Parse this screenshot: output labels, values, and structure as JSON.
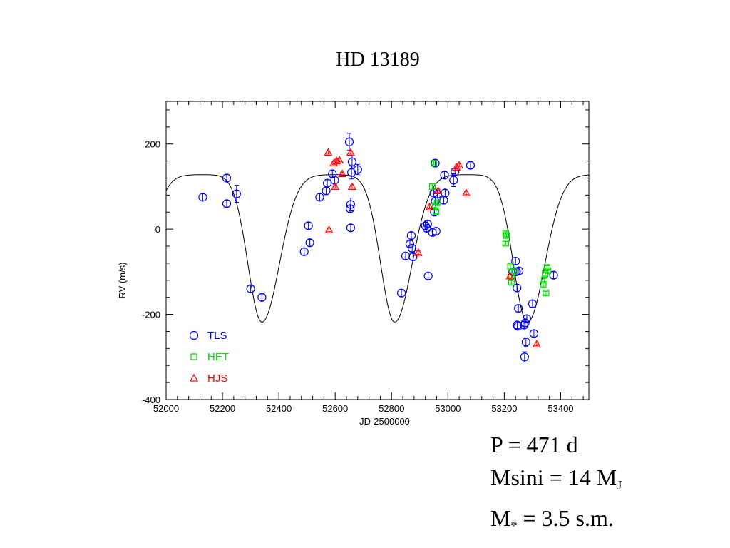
{
  "title": "HD 13189",
  "params": {
    "period_prefix": "P = 471 d",
    "msini_prefix": "Msini = 14 M",
    "msini_sub": "J",
    "mstar_prefix": "M",
    "mstar_sub": "*",
    "mstar_suffix": " = 3.5 s.m."
  },
  "chart_data": {
    "type": "scatter",
    "xlabel": "JD-2500000",
    "ylabel": "RV (m/s)",
    "xlim": [
      52000,
      53500
    ],
    "ylim": [
      -400,
      300
    ],
    "xticks": [
      52000,
      52200,
      52400,
      52600,
      52800,
      53000,
      53200,
      53400
    ],
    "yticks": [
      -400,
      -200,
      0,
      200
    ],
    "xtick_labels": [
      "52000",
      "52200",
      "52400",
      "52600",
      "52800",
      "53000",
      "53200",
      "53400"
    ],
    "ytick_labels": [
      "-400",
      "-200",
      "0",
      "200"
    ],
    "legend_position": "bottom-left",
    "model_curve": {
      "period": 471,
      "type": "keplerian-orbit-fit",
      "max": 128,
      "min": -218,
      "minima": [
        52340,
        52811,
        53282
      ]
    },
    "series": [
      {
        "name": "TLS",
        "marker": "circle",
        "color": "#0000ff",
        "points": [
          {
            "x": 52130,
            "y": 75,
            "err": 8
          },
          {
            "x": 52215,
            "y": 120,
            "err": 8
          },
          {
            "x": 52215,
            "y": 60,
            "err": 8
          },
          {
            "x": 52250,
            "y": 83,
            "err": 20
          },
          {
            "x": 52300,
            "y": -140,
            "err": 8
          },
          {
            "x": 52340,
            "y": -160,
            "err": 8
          },
          {
            "x": 52490,
            "y": -53,
            "err": 8
          },
          {
            "x": 52505,
            "y": 8,
            "err": 8
          },
          {
            "x": 52510,
            "y": -32,
            "err": 8
          },
          {
            "x": 52545,
            "y": 75,
            "err": 8
          },
          {
            "x": 52568,
            "y": 90,
            "err": 8
          },
          {
            "x": 52572,
            "y": 108,
            "err": 8
          },
          {
            "x": 52590,
            "y": 130,
            "err": 8
          },
          {
            "x": 52598,
            "y": 115,
            "err": 8
          },
          {
            "x": 52650,
            "y": 205,
            "err": 20
          },
          {
            "x": 52653,
            "y": 48,
            "err": 8
          },
          {
            "x": 52655,
            "y": 58,
            "err": 15
          },
          {
            "x": 52655,
            "y": 3,
            "err": 8
          },
          {
            "x": 52658,
            "y": 133,
            "err": 15
          },
          {
            "x": 52660,
            "y": 158,
            "err": 15
          },
          {
            "x": 52680,
            "y": 140,
            "err": 12
          },
          {
            "x": 52835,
            "y": -150,
            "err": 8
          },
          {
            "x": 52850,
            "y": -63,
            "err": 8
          },
          {
            "x": 52865,
            "y": -35,
            "err": 8
          },
          {
            "x": 52870,
            "y": -15,
            "err": 8
          },
          {
            "x": 52873,
            "y": -45,
            "err": 8
          },
          {
            "x": 52876,
            "y": -65,
            "err": 8
          },
          {
            "x": 52920,
            "y": 8,
            "err": 8
          },
          {
            "x": 52925,
            "y": 2,
            "err": 8
          },
          {
            "x": 52928,
            "y": 12,
            "err": 8
          },
          {
            "x": 52930,
            "y": -110,
            "err": 8
          },
          {
            "x": 52945,
            "y": -8,
            "err": 8
          },
          {
            "x": 52950,
            "y": 85,
            "err": 8
          },
          {
            "x": 52952,
            "y": 40,
            "err": 8
          },
          {
            "x": 52955,
            "y": 65,
            "err": 8
          },
          {
            "x": 52958,
            "y": -5,
            "err": 8
          },
          {
            "x": 52962,
            "y": 82,
            "err": 8
          },
          {
            "x": 52955,
            "y": 155,
            "err": 8
          },
          {
            "x": 52985,
            "y": 68,
            "err": 8
          },
          {
            "x": 52988,
            "y": 127,
            "err": 8
          },
          {
            "x": 52990,
            "y": 85,
            "err": 8
          },
          {
            "x": 53020,
            "y": 115,
            "err": 15
          },
          {
            "x": 53025,
            "y": 135,
            "err": 8
          },
          {
            "x": 53080,
            "y": 150,
            "err": 8
          },
          {
            "x": 53240,
            "y": -75,
            "err": 8
          },
          {
            "x": 53243,
            "y": -100,
            "err": 8
          },
          {
            "x": 53245,
            "y": -138,
            "err": 8
          },
          {
            "x": 53246,
            "y": -225,
            "err": 8
          },
          {
            "x": 53248,
            "y": -228,
            "err": 8
          },
          {
            "x": 53250,
            "y": -186,
            "err": 8
          },
          {
            "x": 53252,
            "y": -98,
            "err": 8
          },
          {
            "x": 53270,
            "y": -225,
            "err": 8
          },
          {
            "x": 53274,
            "y": -220,
            "err": 8
          },
          {
            "x": 53277,
            "y": -265,
            "err": 10
          },
          {
            "x": 53280,
            "y": -210,
            "err": 8
          },
          {
            "x": 53272,
            "y": -300,
            "err": 12
          },
          {
            "x": 53300,
            "y": -175,
            "err": 8
          },
          {
            "x": 53305,
            "y": -245,
            "err": 8
          },
          {
            "x": 53375,
            "y": -108,
            "err": 8
          },
          {
            "x": 53230,
            "y": -100,
            "err": 8
          }
        ]
      },
      {
        "name": "HET",
        "marker": "square",
        "color": "#00dd00",
        "points": [
          {
            "x": 52945,
            "y": 100,
            "err": 4
          },
          {
            "x": 52950,
            "y": 155,
            "err": 4
          },
          {
            "x": 52955,
            "y": 55,
            "err": 4
          },
          {
            "x": 52958,
            "y": 40,
            "err": 4
          },
          {
            "x": 52962,
            "y": 62,
            "err": 4
          },
          {
            "x": 53205,
            "y": -10,
            "err": 4
          },
          {
            "x": 53208,
            "y": -15,
            "err": 4
          },
          {
            "x": 53205,
            "y": -33,
            "err": 4
          },
          {
            "x": 53222,
            "y": -88,
            "err": 4
          },
          {
            "x": 53225,
            "y": -110,
            "err": 4
          },
          {
            "x": 53225,
            "y": -125,
            "err": 4
          },
          {
            "x": 53235,
            "y": -100,
            "err": 4
          },
          {
            "x": 53338,
            "y": -130,
            "err": 4
          },
          {
            "x": 53342,
            "y": -120,
            "err": 4
          },
          {
            "x": 53345,
            "y": -105,
            "err": 4
          },
          {
            "x": 53348,
            "y": -150,
            "err": 4
          },
          {
            "x": 53352,
            "y": -90,
            "err": 4
          },
          {
            "x": 53355,
            "y": -98,
            "err": 4
          }
        ]
      },
      {
        "name": "HJS",
        "marker": "triangle",
        "color": "#ff0000",
        "points": [
          {
            "x": 52575,
            "y": 180,
            "err": 4
          },
          {
            "x": 52578,
            "y": -2,
            "err": 4
          },
          {
            "x": 52595,
            "y": 155,
            "err": 4
          },
          {
            "x": 52600,
            "y": 100,
            "err": 4
          },
          {
            "x": 52605,
            "y": 160,
            "err": 4
          },
          {
            "x": 52615,
            "y": 162,
            "err": 4
          },
          {
            "x": 52625,
            "y": 130,
            "err": 4
          },
          {
            "x": 52655,
            "y": 180,
            "err": 4
          },
          {
            "x": 52660,
            "y": 100,
            "err": 4
          },
          {
            "x": 52895,
            "y": -55,
            "err": 4
          },
          {
            "x": 52935,
            "y": 52,
            "err": 4
          },
          {
            "x": 52965,
            "y": 90,
            "err": 4
          },
          {
            "x": 53030,
            "y": 145,
            "err": 4
          },
          {
            "x": 53040,
            "y": 150,
            "err": 4
          },
          {
            "x": 53065,
            "y": 85,
            "err": 4
          },
          {
            "x": 53220,
            "y": -110,
            "err": 4
          },
          {
            "x": 53315,
            "y": -270,
            "err": 4
          }
        ]
      }
    ]
  }
}
